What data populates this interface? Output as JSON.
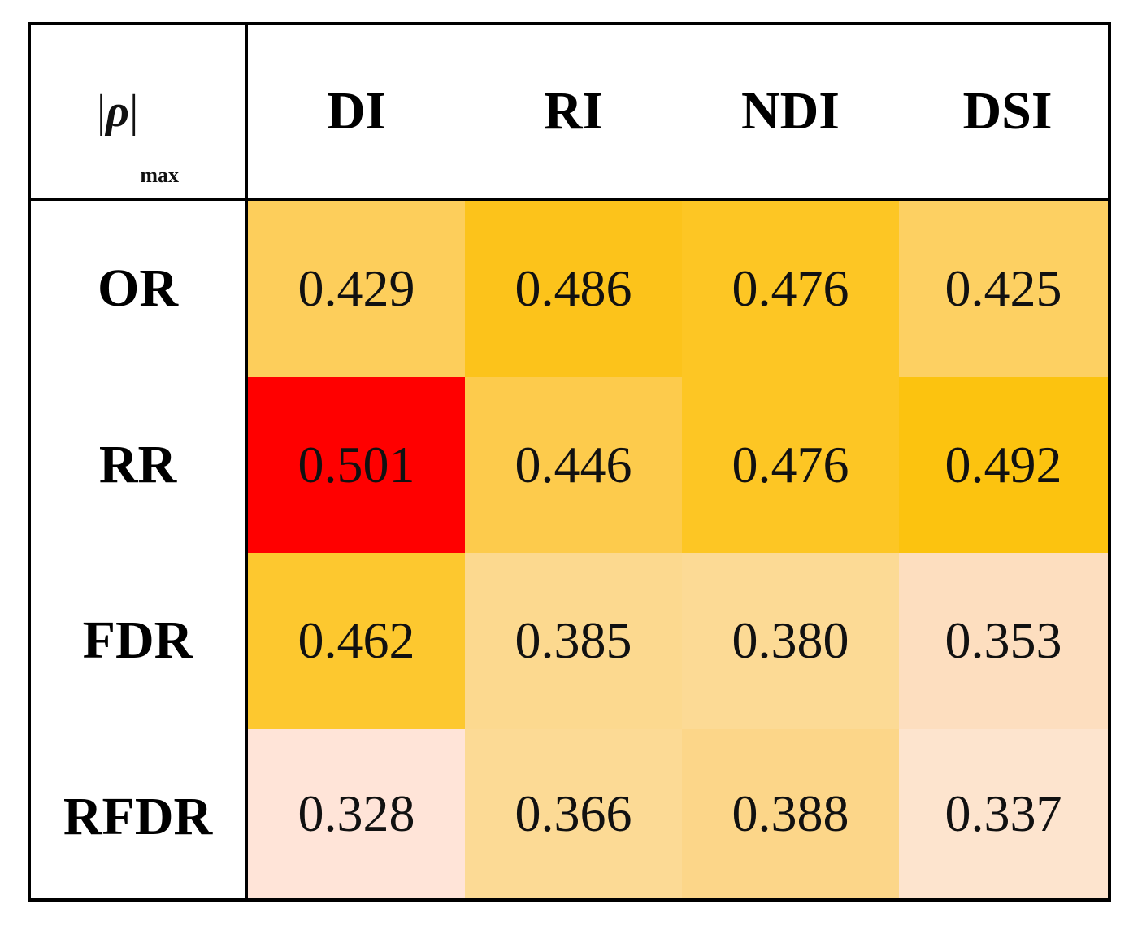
{
  "chart_data": {
    "type": "heatmap",
    "corner_label": {
      "bar_left": "|",
      "symbol": "ρ",
      "bar_right": "|",
      "subscript": "max"
    },
    "columns": [
      "DI",
      "RI",
      "NDI",
      "DSI"
    ],
    "rows": [
      "OR",
      "RR",
      "FDR",
      "RFDR"
    ],
    "values": [
      [
        "0.429",
        "0.486",
        "0.476",
        "0.425"
      ],
      [
        "0.501",
        "0.446",
        "0.476",
        "0.492"
      ],
      [
        "0.462",
        "0.385",
        "0.380",
        "0.353"
      ],
      [
        "0.328",
        "0.366",
        "0.388",
        "0.337"
      ]
    ],
    "colors": [
      [
        "#FDCE5B",
        "#FCC31B",
        "#FDC624",
        "#FDD062"
      ],
      [
        "#FF0000",
        "#FDCB4C",
        "#FDC624",
        "#FCC30F"
      ],
      [
        "#FDC82F",
        "#FCD98F",
        "#FCDA95",
        "#FDDEBF"
      ],
      [
        "#FFE4D8",
        "#FCDA95",
        "#FCD689",
        "#FDE4CE"
      ]
    ]
  }
}
